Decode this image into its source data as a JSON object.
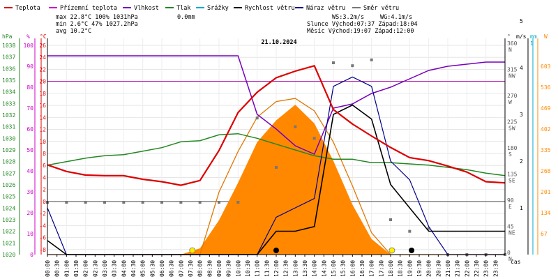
{
  "chart_data": {
    "type": "line",
    "title": "21.10.2024",
    "xlabel": "čas",
    "legend": [
      {
        "name": "Teplota",
        "color": "#dd0000"
      },
      {
        "name": "Přízemní teplota",
        "color": "#cc00cc"
      },
      {
        "name": "Vlhkost",
        "color": "#7700bb"
      },
      {
        "name": "Tlak",
        "color": "#228822"
      },
      {
        "name": "Srážky",
        "color": "#00aacc"
      },
      {
        "name": "Rychlost větru",
        "color": "#000000"
      },
      {
        "name": "Náraz větru",
        "color": "#000088"
      },
      {
        "name": "Směr větru",
        "color": "#777777"
      }
    ],
    "stats": {
      "max": "max 22.8°C 100% 1031hPa",
      "min": "min  2.6°C  47% 1027.2hPa",
      "avg": "avg 10.2°C",
      "rain": "0.0mm",
      "ws": "WS:3.2m/s",
      "wg": "WG:4.1m/s",
      "sun": "Slunce Východ:07:37  Západ:18:04",
      "moon": "Měsíc  Východ:19:07  Západ:12:00"
    },
    "axes": {
      "hpa_label": "hPa",
      "pct_label": "%",
      "temp_label": "°C",
      "deg_label": "°",
      "ms_label": "m/s",
      "mm_label": "mm",
      "w_label": "W",
      "hpa_ticks": [
        "1038",
        "1037",
        "1036",
        "1035",
        "1034",
        "1033",
        "1032",
        "1031",
        "1030",
        "1029",
        "1028",
        "1027",
        "1026",
        "1025",
        "1024",
        "1023",
        "1022",
        "1021",
        "1020"
      ],
      "pct_ticks": [
        "100",
        "90",
        "80",
        "70",
        "60",
        "50",
        "40",
        "30",
        "20",
        "10",
        "0"
      ],
      "temp_ticks": [
        "26",
        "24",
        "22",
        "20",
        "18",
        "16",
        "14",
        "12",
        "10",
        "8",
        "6",
        "4",
        "2",
        "0",
        "-2",
        "-4",
        "-6",
        "-8"
      ],
      "dir_ticks": [
        "360 N",
        "315 NW",
        "270 W",
        "225 SW",
        "180 S",
        "135 SE",
        "90 E",
        "45 NE",
        "0 N"
      ],
      "ms_ticks": [
        "5",
        "4",
        "3",
        "2",
        "1"
      ],
      "mm_ticks": [
        "1"
      ],
      "w_ticks": [
        "603",
        "536",
        "469",
        "402",
        "335",
        "268",
        "201",
        "134",
        "67"
      ],
      "time_ticks": [
        "00:00",
        "00:30",
        "01:00",
        "01:30",
        "02:00",
        "02:30",
        "03:00",
        "03:30",
        "04:00",
        "04:30",
        "05:00",
        "05:30",
        "06:00",
        "06:30",
        "07:00",
        "07:30",
        "08:00",
        "08:30",
        "09:00",
        "09:30",
        "10:00",
        "10:30",
        "11:00",
        "11:30",
        "12:00",
        "12:30",
        "13:00",
        "13:30",
        "14:00",
        "14:30",
        "15:00",
        "15:30",
        "16:00",
        "16:30",
        "17:00",
        "17:30",
        "18:00",
        "18:30",
        "19:00",
        "19:30",
        "20:00",
        "20:30",
        "21:00",
        "21:30",
        "22:00",
        "22:30",
        "23:00",
        "23:30"
      ]
    },
    "hours": [
      0,
      1,
      2,
      3,
      4,
      5,
      6,
      7,
      8,
      9,
      10,
      11,
      12,
      13,
      14,
      15,
      16,
      17,
      18,
      19,
      20,
      21,
      22,
      23,
      24
    ],
    "temperature": [
      6.1,
      5.0,
      4.4,
      4.3,
      4.3,
      3.7,
      3.3,
      2.7,
      3.5,
      8.5,
      14.8,
      18.2,
      20.6,
      21.7,
      22.6,
      15.3,
      12.9,
      10.9,
      9.0,
      7.3,
      6.8,
      5.9,
      4.9,
      3.3,
      3.1
    ],
    "humidity": [
      95,
      95,
      95,
      95,
      95,
      95,
      95,
      95,
      95,
      95,
      95,
      67,
      60,
      52,
      48,
      70,
      72,
      77,
      80,
      84,
      88,
      90,
      91,
      92,
      92
    ],
    "pressure": [
      1027.7,
      1028.0,
      1028.3,
      1028.5,
      1028.6,
      1028.9,
      1029.2,
      1029.7,
      1029.8,
      1030.3,
      1030.4,
      1030.0,
      1029.5,
      1029.0,
      1028.5,
      1028.2,
      1028.2,
      1027.9,
      1027.9,
      1027.8,
      1027.7,
      1027.5,
      1027.3,
      1027.0,
      1026.8
    ],
    "solar_radiation_w": [
      0,
      0,
      0,
      0,
      0,
      0,
      0,
      0,
      20,
      110,
      230,
      360,
      430,
      480,
      420,
      300,
      160,
      50,
      0,
      0,
      0,
      0,
      0,
      0,
      0
    ],
    "clear_sky_radiation_w": [
      0,
      0,
      0,
      0,
      0,
      0,
      0,
      0,
      0,
      200,
      330,
      440,
      490,
      500,
      460,
      360,
      220,
      70,
      0,
      0,
      0,
      0,
      0,
      0,
      0
    ],
    "wind_speed_ms": [
      0.3,
      0,
      0,
      0,
      0,
      0,
      0,
      0,
      0,
      0,
      0,
      0,
      0.5,
      0.5,
      0.6,
      3.0,
      3.2,
      2.9,
      1.5,
      1.0,
      0.5,
      0.5,
      0.5,
      0.5,
      0.5
    ],
    "wind_gust_ms": [
      1.0,
      0,
      0,
      0,
      0,
      0,
      0,
      0,
      0,
      0,
      0,
      0,
      0.8,
      1.0,
      1.2,
      3.6,
      3.8,
      3.6,
      2.0,
      1.6,
      0.6,
      0,
      0,
      0,
      0
    ],
    "wind_direction_deg": [
      90,
      90,
      90,
      90,
      90,
      90,
      90,
      90,
      90,
      90,
      90,
      235,
      150,
      220,
      200,
      330,
      325,
      335,
      60,
      40,
      45,
      0,
      0,
      0,
      0
    ],
    "sun_markers_hours": [
      7.6,
      18.07
    ],
    "moon_markers_hours": [
      12.0,
      19.1
    ]
  }
}
